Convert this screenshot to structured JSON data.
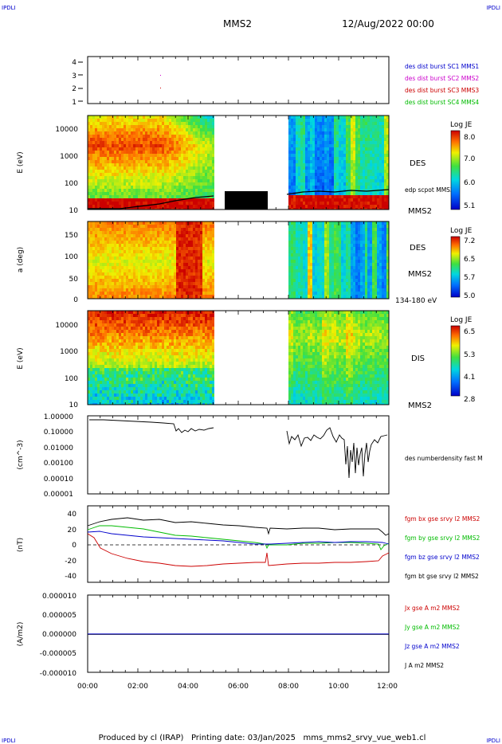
{
  "corner_labels": {
    "top_left": "IPDLI",
    "top_right": "IPDLI",
    "bottom_left": "IPDLI",
    "bottom_right": "IPDLI"
  },
  "header": {
    "spacecraft": "MMS2",
    "date": "12/Aug/2022 00:00"
  },
  "footer": "Produced by cl (IRAP)   Printing date: 03/Jan/2025   mms_mms2_srvy_vue_web1.cl",
  "colors": {
    "blue": "#0000cc",
    "magenta": "#cc00cc",
    "red": "#cc0000",
    "green": "#00bb00",
    "black": "#000000"
  },
  "time_axis": {
    "ticks": [
      "00:00",
      "02:00",
      "04:00",
      "06:00",
      "08:00",
      "10:00",
      "12:00"
    ]
  },
  "chart_data": [
    {
      "type": "scatter",
      "panel": "burst-flags",
      "yticks": [
        "1",
        "2",
        "3",
        "4"
      ],
      "ylim": [
        1,
        4
      ],
      "legend": [
        {
          "label": "des dist burst SC1 MMS1",
          "color": "#0000cc"
        },
        {
          "label": "des dist burst SC2 MMS2",
          "color": "#cc00cc"
        },
        {
          "label": "des dist burst SC3 MMS3",
          "color": "#cc0000"
        },
        {
          "label": "des dist burst SC4 MMS4",
          "color": "#00bb00"
        }
      ]
    },
    {
      "type": "heatmap",
      "panel": "des-energy",
      "ylabel": "E (eV)",
      "yticks": [
        "10000",
        "1000",
        "100",
        "10"
      ],
      "right_labels": [
        "DES",
        "edp scpot MMS2",
        "MMS2"
      ],
      "colorbar": {
        "title": "Log JE",
        "ticks": [
          "8.0",
          "7.0",
          "6.0",
          "5.1"
        ]
      },
      "data_gap_hours": [
        5.0,
        7.8
      ]
    },
    {
      "type": "heatmap",
      "panel": "des-pitch",
      "ylabel": "a (deg)",
      "yticks": [
        "150",
        "100",
        "50",
        "0"
      ],
      "right_labels": [
        "DES",
        "MMS2",
        "134-180 eV"
      ],
      "colorbar": {
        "title": "Log JE",
        "ticks": [
          "7.2",
          "6.5",
          "5.7",
          "5.0"
        ]
      }
    },
    {
      "type": "heatmap",
      "panel": "dis-energy",
      "ylabel": "E (eV)",
      "yticks": [
        "10000",
        "1000",
        "100",
        "10"
      ],
      "right_labels": [
        "DIS",
        "MMS2"
      ],
      "colorbar": {
        "title": "Log JE",
        "ticks": [
          "6.5",
          "5.3",
          "4.1",
          "2.8"
        ]
      }
    },
    {
      "type": "line",
      "panel": "density",
      "ylabel": "(cm^-3)",
      "yticks": [
        "1.00000",
        "0.10000",
        "0.01000",
        "0.00100",
        "0.00010",
        "0.00001"
      ],
      "series": [
        {
          "name": "des numberdensity fast M",
          "color": "#000000"
        }
      ]
    },
    {
      "type": "line",
      "panel": "fgm",
      "ylabel": "(nT)",
      "yticks": [
        "40",
        "20",
        "0",
        "-20",
        "-40"
      ],
      "ylim": [
        -45,
        45
      ],
      "series": [
        {
          "name": "fgm bx gse srvy l2 MMS2",
          "color": "#cc0000"
        },
        {
          "name": "fgm by gse srvy l2 MMS2",
          "color": "#00bb00"
        },
        {
          "name": "fgm bz gse srvy l2 MMS2",
          "color": "#0000cc"
        },
        {
          "name": "fgm bt gse srvy l2 MMS2",
          "color": "#000000"
        }
      ]
    },
    {
      "type": "line",
      "panel": "current",
      "ylabel": "(A/m2)",
      "yticks": [
        "0.000010",
        "0.000005",
        "0.000000",
        "-0.000005",
        "-0.000010"
      ],
      "ylim": [
        -1e-05,
        1e-05
      ],
      "series": [
        {
          "name": "Jx gse A m2 MMS2",
          "color": "#cc0000"
        },
        {
          "name": "Jy gse A m2 MMS2",
          "color": "#00bb00"
        },
        {
          "name": "Jz gse A m2 MMS2",
          "color": "#0000cc"
        },
        {
          "name": "J A m2 MMS2",
          "color": "#000000"
        }
      ]
    }
  ]
}
